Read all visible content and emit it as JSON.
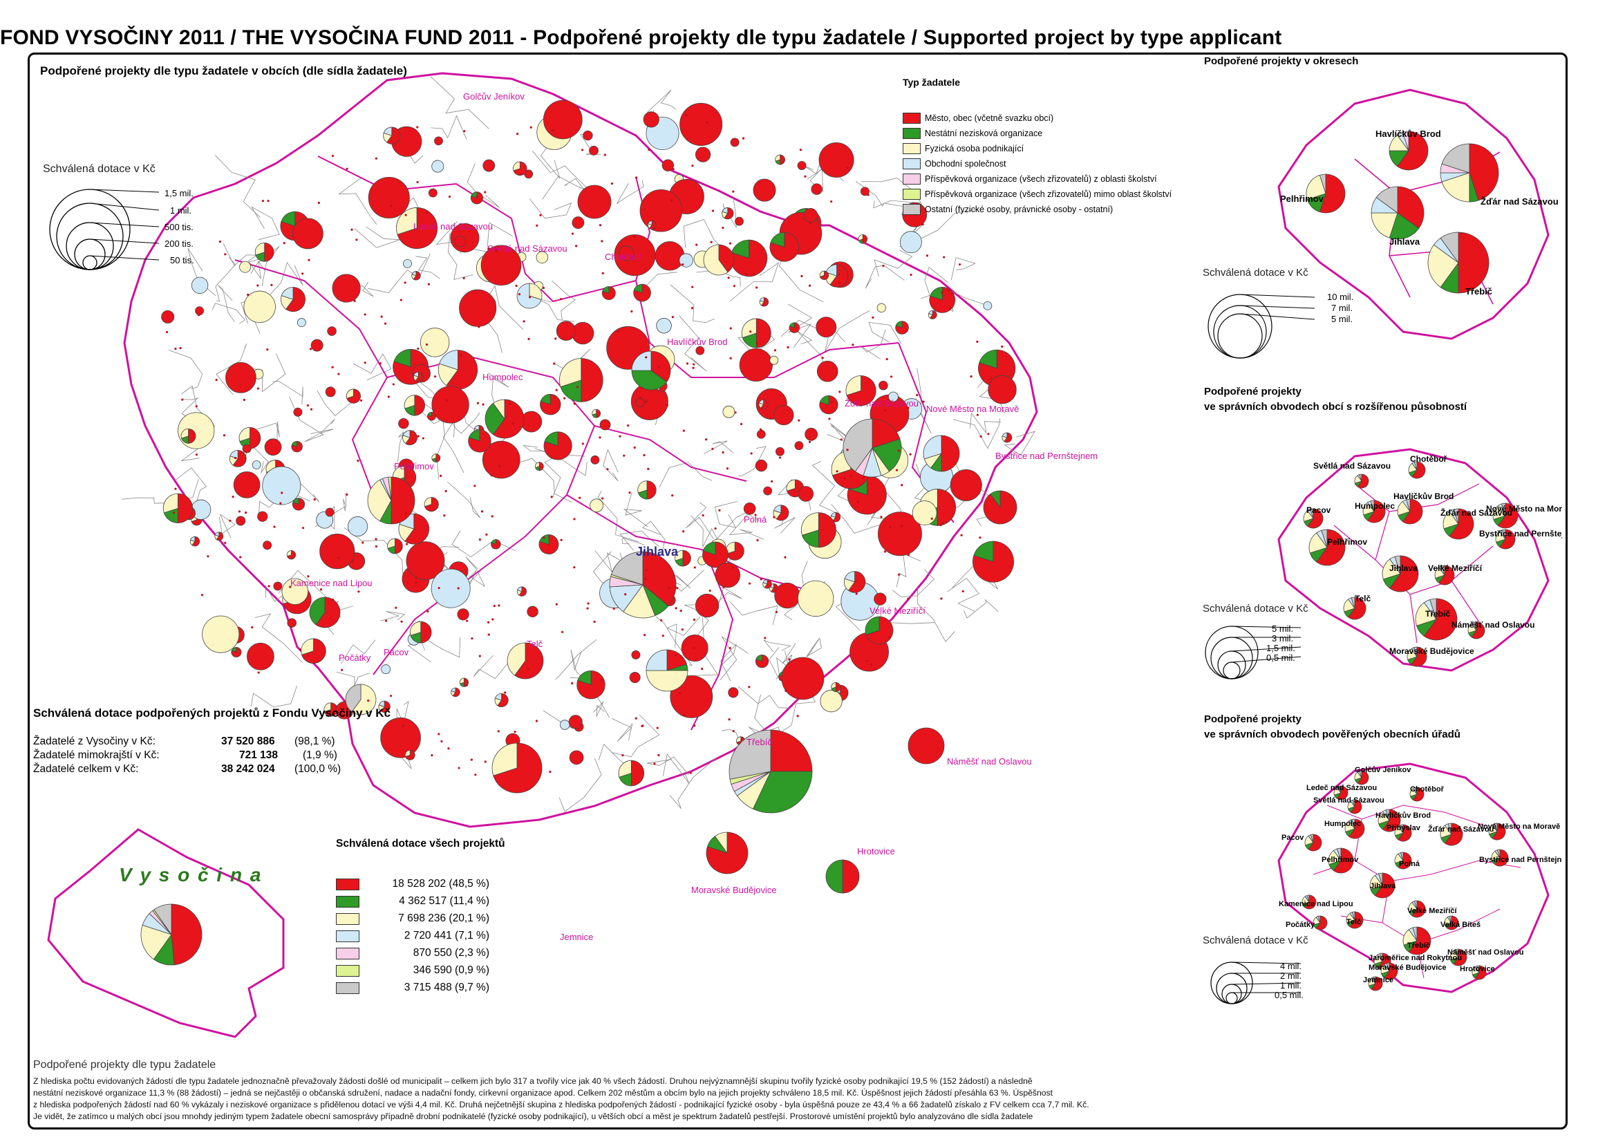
{
  "title": "FOND VYSOČINY 2011 / THE VYSOČINA FUND 2011 - Podpořené projekty dle typu žadatele / Supported project by type applicant",
  "main_map": {
    "title": "Podpořené projekty dle typu žadatele v obcích (dle sídla žadatele)",
    "scale": {
      "title": "Schválená dotace v Kč",
      "labels": [
        "1,5 mil.",
        "1 mil.",
        "500 tis.",
        "200 tis.",
        "50 tis."
      ]
    },
    "region_name": "V y s o č i n a",
    "towns": [
      "Golčův Jeníkov",
      "Ledeč nad Sázavou",
      "Světlá nad Sázavou",
      "Chotěboř",
      "Havlíčkův Brod",
      "Humpolec",
      "Žďár nad Sázavou",
      "Nové Město na Moravě",
      "Bystřice nad Pernštejnem",
      "Pelhřimov",
      "Jihlava",
      "Kamenice nad Lipou",
      "Pacov",
      "Počátky",
      "Telč",
      "Velké Meziříčí",
      "Třebíč",
      "Náměšť nad Oslavou",
      "Moravské Budějovice",
      "Hrotovice",
      "Jemnice",
      "Polná"
    ]
  },
  "colors": {
    "red": "#e8141b",
    "green": "#2e9a27",
    "cream": "#fbf6c4",
    "lightblue": "#cfe8f7",
    "pink": "#f7cfe8",
    "lime": "#ddf291",
    "grey": "#c9c9c9",
    "border": "#d0109e"
  },
  "legend": {
    "title": "Typ žadatele",
    "items": [
      {
        "label": "Město, obec (včetně svazku obcí)",
        "color": "#e8141b"
      },
      {
        "label": "Nestátní nezisková organizace",
        "color": "#2e9a27"
      },
      {
        "label": "Fyzická osoba podnikající",
        "color": "#fbf6c4"
      },
      {
        "label": "Obchodní společnost",
        "color": "#cfe8f7"
      },
      {
        "label": "Příspěvková organizace (všech zřizovatelů) z oblasti školství",
        "color": "#f7cfe8"
      },
      {
        "label": "Příspěvková organizace (všech zřizovatelů) mimo oblast školství",
        "color": "#ddf291"
      },
      {
        "label": "Ostatní (fyzické osoby, právnické osoby - ostatní)",
        "color": "#c9c9c9"
      }
    ]
  },
  "summary": {
    "title": "Schválená dotace podpořených projektů z Fondu Vysočiny v Kč",
    "rows": [
      {
        "label": "Žadatelé z Vysočiny v Kč:",
        "value": "37 520 886",
        "pct": "(98,1 %)"
      },
      {
        "label": "Žadatelé mimokrajští v Kč:",
        "value": "721 138",
        "pct": "(1,9 %)"
      },
      {
        "label": "Žadatelé celkem v Kč:",
        "value": "38 242 024",
        "pct": "(100,0 %)"
      }
    ]
  },
  "all_projects": {
    "title": "Schválená dotace všech projektů",
    "rows": [
      {
        "value": "18 528 202 (48,5 %)",
        "color": "#e8141b",
        "share": 48.5
      },
      {
        "value": "4 362 517 (11,4 %)",
        "color": "#2e9a27",
        "share": 11.4
      },
      {
        "value": "7 698 236 (20,1 %)",
        "color": "#fbf6c4",
        "share": 20.1
      },
      {
        "value": "2 720 441   (7,1 %)",
        "color": "#cfe8f7",
        "share": 7.1
      },
      {
        "value": "870 550   (2,3 %)",
        "color": "#f7cfe8",
        "share": 2.3
      },
      {
        "value": "346 590   (0,9 %)",
        "color": "#ddf291",
        "share": 0.9
      },
      {
        "value": "3 715 488   (9,7 %)",
        "color": "#c9c9c9",
        "share": 9.7
      }
    ]
  },
  "districts_panel": {
    "title": "Podpořené projekty v okresech",
    "labels": [
      "Havlíčkův Brod",
      "Pelhřimov",
      "Žďár nad Sázavou",
      "Jihlava",
      "Třebíč"
    ],
    "scale": {
      "title": "Schválená dotace v Kč",
      "labels": [
        "10 mil.",
        "7 mil.",
        "5 mil."
      ]
    }
  },
  "orp_panel": {
    "title": "Podpořené projekty\nve správních obvodech obcí s rozšířenou působností",
    "title_line1": "Podpořené projekty",
    "title_line2": "ve správních obvodech obcí s rozšířenou působností",
    "labels": [
      "Chotěboř",
      "Světlá nad Sázavou",
      "Humpolec",
      "Havlíčkův Brod",
      "Pacov",
      "Žďár nad Sázavou",
      "Nové Město na Moravě",
      "Pelhřimov",
      "Bystřice nad Pernštejnem",
      "Jihlava",
      "Velké Meziříčí",
      "Telč",
      "Třebíč",
      "Náměšť nad Oslavou",
      "Moravské Budějovice"
    ],
    "scale": {
      "title": "Schválená dotace v Kč",
      "labels": [
        "5 mil.",
        "3 mil.",
        "1,5 mil.",
        "0,5 mil."
      ]
    }
  },
  "pou_panel": {
    "title_line1": "Podpořené projekty",
    "title_line2": "ve správních obvodech pověřených obecních úřadů",
    "labels": [
      "Golčův Jeníkov",
      "Ledeč nad Sázavou",
      "Chotěboř",
      "Světlá nad Sázavou",
      "Havlíčkův Brod",
      "Přibyslav",
      "Humpolec",
      "Žďár nad Sázavou",
      "Nové Město na Moravě",
      "Pacov",
      "Pelhřimov",
      "Polná",
      "Bystřice nad Pernštejnem",
      "Jihlava",
      "Kamenice nad Lipou",
      "Velké Meziříčí",
      "Počátky",
      "Telč",
      "Velká Bíteš",
      "Třebíč",
      "Náměšť nad Oslavou",
      "Jaroměřice nad Rokytnou",
      "Moravské Budějovice",
      "Hrotovice",
      "Jemnice"
    ],
    "scale": {
      "title": "Schválená dotace v Kč",
      "labels": [
        "4 mil.",
        "2 mil.",
        "1 mil.",
        "0,5 mil."
      ]
    }
  },
  "note": {
    "title": "Podpořené projekty dle typu žadatele",
    "lines": [
      "Z hlediska počtu evidovaných žádostí dle typu žadatele jednoznačně převažovaly žádosti došlé od municipalit – celkem jich bylo 317 a tvořily více jak 40 % všech žádostí. Druhou nejvýznamnější skupinu tvořily fyzické osoby podnikající 19,5 % (152 žádostí) a následně",
      " nestátní neziskové organizace 11,3 % (88 žádostí) – jedná se nejčastěji o občanská sdružení, nadace a nadační fondy, církevní organizace apod. Celkem 202 městům a obcím bylo na jejich projekty schváleno 18,5 mil. Kč. Úspěšnost jejich žádostí přesáhla 63 %. Úspěšnost",
      "z hlediska podpořených žádostí nad 60 % vykázaly i neziskové organizace s přidělenou dotací ve výši 4,4 mil. Kč. Druhá nejčetnější skupina z hlediska podpořených žádostí - podnikající fyzické osoby - byla úspěšná pouze ze 43,4 % a 66 žadatelů získalo z FV celkem cca 7,7 mil. Kč.",
      "Je vidět, že zatímco u malých obcí jsou mnohdy jediným typem žadatele obecní samosprávy případně drobní podnikatelé (fyzické osoby podnikající), u větších obcí a měst je spektrum žadatelů pestřejší. Prostorové umístění projektů bylo analyzováno dle sídla žadatele"
    ]
  }
}
